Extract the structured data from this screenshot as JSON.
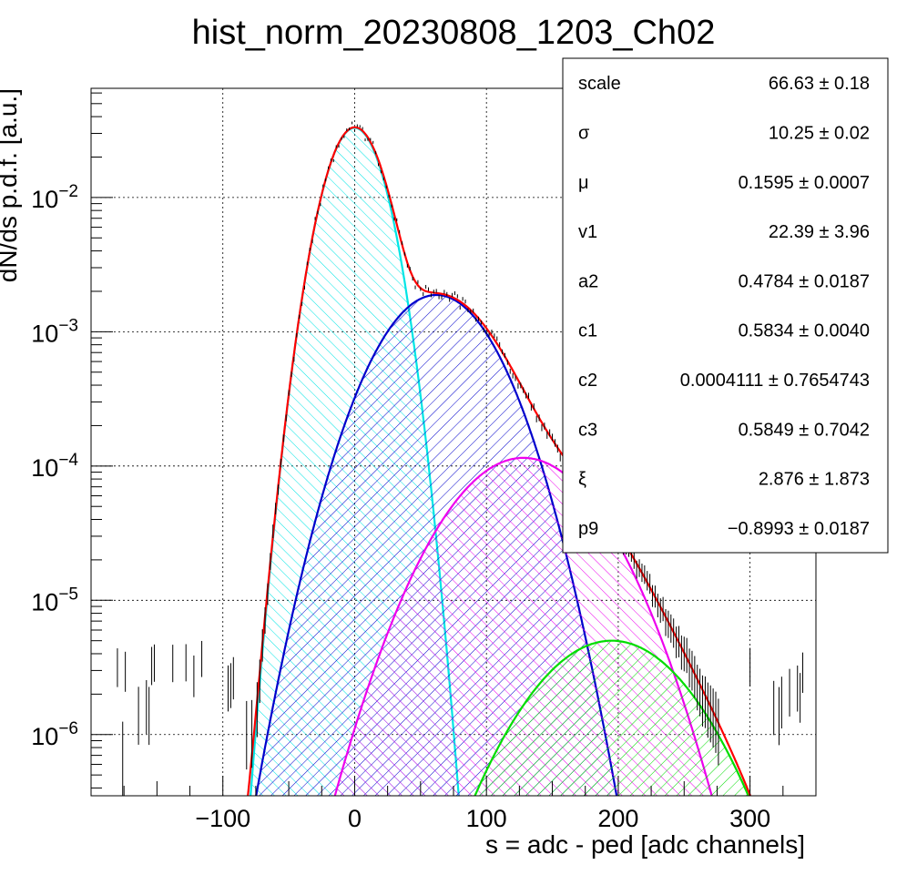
{
  "chart_data": {
    "type": "line",
    "title": "hist_norm_20230808_1203_Ch02",
    "xlabel": "s = adc - ped [adc channels]",
    "ylabel": "dN/ds p.d.f. [a.u.]",
    "xlim": [
      -200,
      350
    ],
    "ylim": [
      3.5e-07,
      0.065
    ],
    "yscale": "log",
    "grid": true,
    "x_ticks": [
      {
        "value": -100,
        "label": "−100"
      },
      {
        "value": 0,
        "label": "0"
      },
      {
        "value": 100,
        "label": "100"
      },
      {
        "value": 200,
        "label": "200"
      },
      {
        "value": 300,
        "label": "300"
      }
    ],
    "y_ticks": [
      {
        "value": 0.01,
        "base": "10",
        "exp": "−2"
      },
      {
        "value": 0.001,
        "base": "10",
        "exp": "−3"
      },
      {
        "value": 0.0001,
        "base": "10",
        "exp": "−4"
      },
      {
        "value": 1e-05,
        "base": "10",
        "exp": "−5"
      },
      {
        "value": 1e-06,
        "base": "10",
        "exp": "−6"
      }
    ],
    "series": [
      {
        "color": "#00e5e5",
        "fill": "hatch",
        "components": [
          {
            "a": 0.033,
            "mu": 0,
            "sigma": 16.5
          }
        ]
      },
      {
        "color": "#0000cc",
        "fill": "hatch",
        "components": [
          {
            "a": 0.00188,
            "mu": 62,
            "sigma": 33
          }
        ]
      },
      {
        "color": "#ee00ee",
        "fill": "hatch",
        "components": [
          {
            "a": 0.000115,
            "mu": 128,
            "sigma": 42
          }
        ]
      },
      {
        "color": "#00dd00",
        "fill": "hatch",
        "components": [
          {
            "a": 5e-06,
            "mu": 195,
            "sigma": 45
          }
        ]
      },
      {
        "color": "#ff0000",
        "fill": "none",
        "components": [
          {
            "a": 0.033,
            "mu": 0,
            "sigma": 16.5
          },
          {
            "a": 0.00188,
            "mu": 62,
            "sigma": 33
          },
          {
            "a": 0.000115,
            "mu": 128,
            "sigma": 42
          },
          {
            "a": 5e-06,
            "mu": 195,
            "sigma": 45
          }
        ]
      }
    ],
    "data_points": {
      "x_start": -180,
      "x_end": 340,
      "step": 2,
      "noise_floor": 1.2e-06
    }
  },
  "stats_box": {
    "rows": [
      {
        "label": "scale",
        "value": "66.63 ± 0.18"
      },
      {
        "label": "σ",
        "value": "10.25 ± 0.02"
      },
      {
        "label": "μ",
        "value": "0.1595 ± 0.0007"
      },
      {
        "label": "v1",
        "value": "22.39 ± 3.96"
      },
      {
        "label": "a2",
        "value": "0.4784 ± 0.0187"
      },
      {
        "label": "c1",
        "value": "0.5834 ± 0.0040"
      },
      {
        "label": "c2",
        "value": "0.0004111 ± 0.7654743"
      },
      {
        "label": "c3",
        "value": "0.5849 ± 0.7042"
      },
      {
        "label": "ξ",
        "value": "2.876 ± 1.873"
      },
      {
        "label": "p9",
        "value": "−0.8993 ± 0.0187"
      }
    ]
  }
}
